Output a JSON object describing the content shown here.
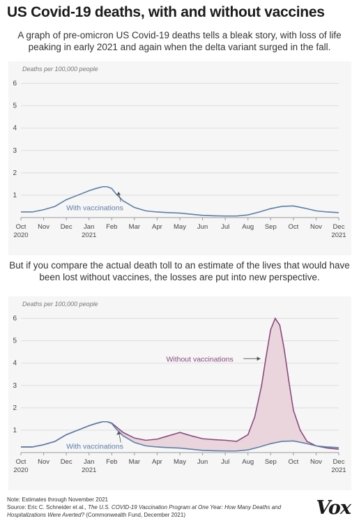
{
  "title": "US Covid-19 deaths, with and without vaccines",
  "subtitle": "A graph of pre-omicron US Covid-19 deaths tells a bleak story, with loss of life peaking in early 2021 and again when the delta variant surged in the fall.",
  "subtitle2": "But if you compare the actual death toll to an estimate of the lives that would have been lost without vaccines, the losses are put into new perspective.",
  "footer": {
    "note": "Note: Estimates through November 2021",
    "source_prefix": "Source: Eric C. Schneider et al., ",
    "source_title": "The U.S. COVID-19 Vaccination Program at One Year: How Many Deaths and Hospitalizations Were Averted?",
    "source_suffix": " (Commonwealth Fund, December 2021)"
  },
  "logo": "Vox",
  "colors": {
    "with_line": "#5a7fa6",
    "without_line": "#8a4a7c",
    "fill": "#ead5dd",
    "panel_bg": "#f6f6f6",
    "grid": "#dddddd"
  },
  "chart_data": [
    {
      "type": "line",
      "ylabel": "Deaths per 100,000 people",
      "ylim": [
        0,
        6.3
      ],
      "yticks": [
        1,
        2,
        3,
        4,
        5,
        6
      ],
      "xlim": [
        0,
        14
      ],
      "xticks": [
        {
          "x": 0,
          "label": "Oct",
          "sub": "2020"
        },
        {
          "x": 1,
          "label": "Nov",
          "sub": ""
        },
        {
          "x": 2,
          "label": "Dec",
          "sub": ""
        },
        {
          "x": 3,
          "label": "Jan",
          "sub": "2021"
        },
        {
          "x": 4,
          "label": "Feb",
          "sub": ""
        },
        {
          "x": 5,
          "label": "Mar",
          "sub": ""
        },
        {
          "x": 6,
          "label": "Apr",
          "sub": ""
        },
        {
          "x": 7,
          "label": "May",
          "sub": ""
        },
        {
          "x": 8,
          "label": "Jun",
          "sub": ""
        },
        {
          "x": 9,
          "label": "Jul",
          "sub": ""
        },
        {
          "x": 10,
          "label": "Aug",
          "sub": ""
        },
        {
          "x": 11,
          "label": "Sep",
          "sub": ""
        },
        {
          "x": 12,
          "label": "Oct",
          "sub": ""
        },
        {
          "x": 13,
          "label": "Nov",
          "sub": ""
        },
        {
          "x": 14,
          "label": "Dec",
          "sub": "2021"
        }
      ],
      "series": [
        {
          "name": "With vaccinations",
          "x": [
            0,
            0.5,
            1,
            1.5,
            2,
            2.5,
            3,
            3.3,
            3.6,
            3.8,
            4,
            4.2,
            4.5,
            5,
            5.5,
            6,
            6.5,
            7,
            7.5,
            8,
            8.5,
            9,
            9.5,
            10,
            10.5,
            11,
            11.5,
            12,
            12.5,
            13,
            13.5,
            14
          ],
          "y": [
            0.25,
            0.25,
            0.35,
            0.5,
            0.8,
            1.0,
            1.2,
            1.3,
            1.38,
            1.38,
            1.3,
            1.05,
            0.75,
            0.45,
            0.3,
            0.25,
            0.22,
            0.2,
            0.15,
            0.1,
            0.08,
            0.07,
            0.07,
            0.12,
            0.25,
            0.4,
            0.5,
            0.52,
            0.42,
            0.3,
            0.25,
            0.22
          ]
        }
      ],
      "annotations": [
        {
          "text": "With vaccinations",
          "series": "With vaccinations"
        }
      ]
    },
    {
      "type": "area",
      "ylabel": "Deaths per 100,000 people",
      "ylim": [
        0,
        6.3
      ],
      "yticks": [
        1,
        2,
        3,
        4,
        5,
        6
      ],
      "xlim": [
        0,
        14
      ],
      "xticks": [
        {
          "x": 0,
          "label": "Oct",
          "sub": "2020"
        },
        {
          "x": 1,
          "label": "Nov",
          "sub": ""
        },
        {
          "x": 2,
          "label": "Dec",
          "sub": ""
        },
        {
          "x": 3,
          "label": "Jan",
          "sub": "2021"
        },
        {
          "x": 4,
          "label": "Feb",
          "sub": ""
        },
        {
          "x": 5,
          "label": "Mar",
          "sub": ""
        },
        {
          "x": 6,
          "label": "Apr",
          "sub": ""
        },
        {
          "x": 7,
          "label": "May",
          "sub": ""
        },
        {
          "x": 8,
          "label": "Jun",
          "sub": ""
        },
        {
          "x": 9,
          "label": "Jul",
          "sub": ""
        },
        {
          "x": 10,
          "label": "Aug",
          "sub": ""
        },
        {
          "x": 11,
          "label": "Sep",
          "sub": ""
        },
        {
          "x": 12,
          "label": "Oct",
          "sub": ""
        },
        {
          "x": 13,
          "label": "Nov",
          "sub": ""
        },
        {
          "x": 14,
          "label": "Dec",
          "sub": "2021"
        }
      ],
      "series": [
        {
          "name": "With vaccinations",
          "x": [
            0,
            0.5,
            1,
            1.5,
            2,
            2.5,
            3,
            3.3,
            3.6,
            3.8,
            4,
            4.2,
            4.5,
            5,
            5.5,
            6,
            6.5,
            7,
            7.5,
            8,
            8.5,
            9,
            9.5,
            10,
            10.5,
            11,
            11.5,
            12,
            12.5,
            13,
            13.5,
            14
          ],
          "y": [
            0.25,
            0.25,
            0.35,
            0.5,
            0.8,
            1.0,
            1.2,
            1.3,
            1.38,
            1.38,
            1.3,
            1.05,
            0.75,
            0.45,
            0.3,
            0.25,
            0.22,
            0.2,
            0.15,
            0.1,
            0.08,
            0.07,
            0.07,
            0.12,
            0.25,
            0.4,
            0.5,
            0.52,
            0.42,
            0.3,
            0.25,
            0.22
          ]
        },
        {
          "name": "Without vaccinations",
          "x": [
            0,
            0.5,
            1,
            1.5,
            2,
            2.5,
            3,
            3.3,
            3.6,
            3.8,
            4,
            4.2,
            4.5,
            5,
            5.5,
            6,
            6.5,
            7,
            7.5,
            8,
            8.5,
            9,
            9.5,
            10,
            10.3,
            10.6,
            10.8,
            11,
            11.2,
            11.4,
            11.6,
            11.8,
            12,
            12.3,
            12.6,
            13,
            13.5,
            14
          ],
          "y": [
            0.25,
            0.25,
            0.35,
            0.5,
            0.8,
            1.0,
            1.2,
            1.3,
            1.38,
            1.38,
            1.32,
            1.15,
            0.9,
            0.65,
            0.55,
            0.6,
            0.75,
            0.9,
            0.75,
            0.62,
            0.58,
            0.55,
            0.5,
            0.8,
            1.6,
            3.0,
            4.3,
            5.5,
            6.0,
            5.7,
            4.6,
            3.2,
            1.9,
            1.0,
            0.5,
            0.3,
            0.2,
            0.15
          ]
        }
      ],
      "annotations": [
        {
          "text": "With vaccinations",
          "series": "With vaccinations"
        },
        {
          "text": "Without vaccinations",
          "series": "Without vaccinations"
        }
      ]
    }
  ]
}
